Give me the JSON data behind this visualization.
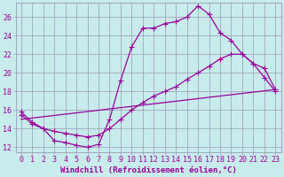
{
  "xlabel": "Windchill (Refroidissement éolien,°C)",
  "bg_color": "#c8ecec",
  "line_color": "#990099",
  "grid_color": "#9999bb",
  "xlim": [
    -0.5,
    23.5
  ],
  "ylim": [
    11.5,
    27.5
  ],
  "xticks": [
    0,
    1,
    2,
    3,
    4,
    5,
    6,
    7,
    8,
    9,
    10,
    11,
    12,
    13,
    14,
    15,
    16,
    17,
    18,
    19,
    20,
    21,
    22,
    23
  ],
  "yticks": [
    12,
    14,
    16,
    18,
    20,
    22,
    24,
    26
  ],
  "line1_x": [
    0,
    1,
    2,
    3,
    4,
    5,
    6,
    7,
    8,
    9,
    10,
    11,
    12,
    13,
    14,
    15,
    16,
    17,
    18,
    19,
    20,
    21,
    22,
    23
  ],
  "line1_y": [
    15.8,
    14.7,
    14.0,
    12.7,
    12.5,
    12.2,
    12.0,
    12.3,
    15.0,
    19.2,
    22.8,
    24.8,
    24.8,
    25.3,
    25.5,
    26.0,
    27.2,
    26.3,
    24.3,
    23.5,
    22.0,
    21.0,
    19.5,
    18.0
  ],
  "line2_x": [
    0,
    1,
    2,
    3,
    4,
    5,
    6,
    7,
    8,
    9,
    10,
    11,
    12,
    13,
    14,
    15,
    16,
    17,
    18,
    19,
    20,
    21,
    22,
    23
  ],
  "line2_y": [
    15.5,
    14.5,
    14.0,
    13.7,
    13.5,
    13.3,
    13.1,
    13.3,
    14.0,
    15.0,
    16.0,
    16.8,
    17.5,
    18.0,
    18.5,
    19.3,
    20.0,
    20.7,
    21.5,
    22.0,
    22.0,
    21.0,
    20.5,
    18.2
  ],
  "line3_x": [
    0,
    23
  ],
  "line3_y": [
    15.0,
    18.2
  ],
  "marker": "+",
  "markersize": 4,
  "linewidth": 0.9,
  "xlabel_fontsize": 6.5,
  "tick_fontsize": 6.0
}
